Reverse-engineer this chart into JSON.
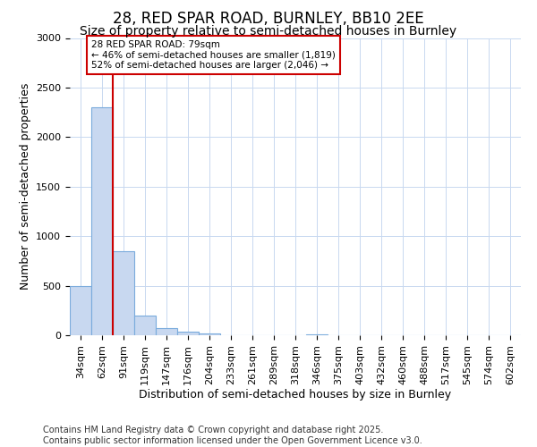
{
  "title": "28, RED SPAR ROAD, BURNLEY, BB10 2EE",
  "subtitle": "Size of property relative to semi-detached houses in Burnley",
  "xlabel": "Distribution of semi-detached houses by size in Burnley",
  "ylabel": "Number of semi-detached properties",
  "categories": [
    "34sqm",
    "62sqm",
    "91sqm",
    "119sqm",
    "147sqm",
    "176sqm",
    "204sqm",
    "233sqm",
    "261sqm",
    "289sqm",
    "318sqm",
    "346sqm",
    "375sqm",
    "403sqm",
    "432sqm",
    "460sqm",
    "488sqm",
    "517sqm",
    "545sqm",
    "574sqm",
    "602sqm"
  ],
  "values": [
    500,
    2300,
    850,
    200,
    75,
    40,
    15,
    3,
    2,
    2,
    2,
    5,
    0,
    0,
    0,
    0,
    0,
    0,
    0,
    0,
    0
  ],
  "bar_color": "#c8d8f0",
  "bar_edge_color": "#7aabdc",
  "grid_color": "#c8d8f0",
  "vline_color": "#cc0000",
  "vline_x_index": 2,
  "annotation_text": "28 RED SPAR ROAD: 79sqm\n← 46% of semi-detached houses are smaller (1,819)\n52% of semi-detached houses are larger (2,046) →",
  "annotation_box_color": "#cc0000",
  "annotation_box_fill": "#ffffff",
  "ylim": [
    0,
    3000
  ],
  "yticks": [
    0,
    500,
    1000,
    1500,
    2000,
    2500,
    3000
  ],
  "footer": "Contains HM Land Registry data © Crown copyright and database right 2025.\nContains public sector information licensed under the Open Government Licence v3.0.",
  "bg_color": "#ffffff",
  "plot_bg_color": "#ffffff",
  "title_fontsize": 12,
  "subtitle_fontsize": 10,
  "label_fontsize": 9,
  "tick_fontsize": 8,
  "footer_fontsize": 7
}
